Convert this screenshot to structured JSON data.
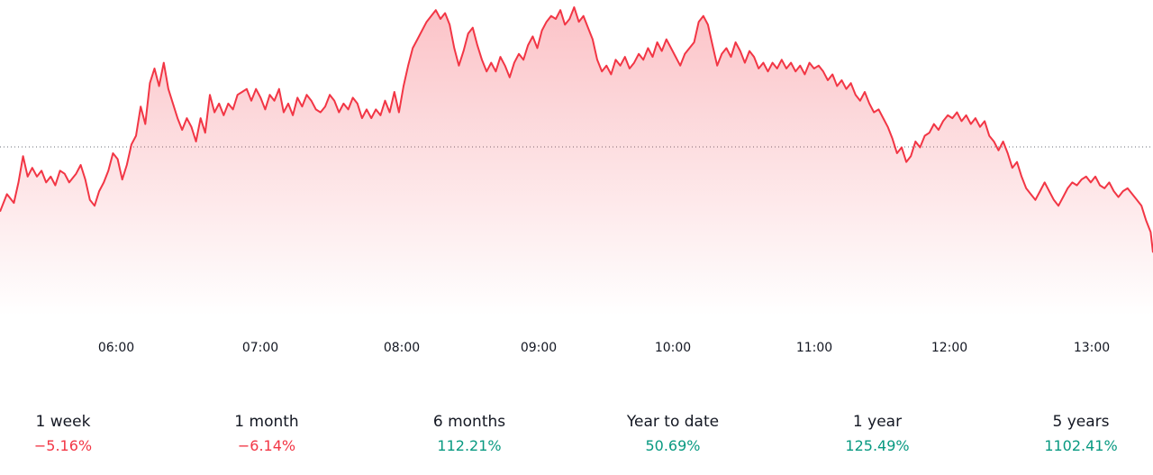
{
  "chart_data": {
    "type": "area",
    "xlabel": "",
    "ylabel": "",
    "x_ticks": [
      "06:00",
      "07:00",
      "08:00",
      "09:00",
      "10:00",
      "11:00",
      "12:00",
      "13:00"
    ],
    "reference_line": "dotted horizontal line (previous close)",
    "grid": false,
    "y_axis_visible": false,
    "line_color": "#f23645",
    "fill_color": "#f23645",
    "series": [
      {
        "points": [
          [
            0,
            0.7
          ],
          [
            0.3,
            0.64
          ],
          [
            0.6,
            0.67
          ],
          [
            0.8,
            0.6
          ],
          [
            1.0,
            0.51
          ],
          [
            1.2,
            0.58
          ],
          [
            1.4,
            0.55
          ],
          [
            1.6,
            0.58
          ],
          [
            1.8,
            0.56
          ],
          [
            2.0,
            0.6
          ],
          [
            2.2,
            0.58
          ],
          [
            2.4,
            0.61
          ],
          [
            2.6,
            0.56
          ],
          [
            2.8,
            0.57
          ],
          [
            3.0,
            0.6
          ],
          [
            3.3,
            0.57
          ],
          [
            3.5,
            0.54
          ],
          [
            3.7,
            0.59
          ],
          [
            3.9,
            0.66
          ],
          [
            4.1,
            0.68
          ],
          [
            4.3,
            0.63
          ],
          [
            4.5,
            0.6
          ],
          [
            4.7,
            0.56
          ],
          [
            4.9,
            0.5
          ],
          [
            5.1,
            0.52
          ],
          [
            5.3,
            0.59
          ],
          [
            5.5,
            0.54
          ],
          [
            5.7,
            0.47
          ],
          [
            5.9,
            0.44
          ],
          [
            6.1,
            0.34
          ],
          [
            6.3,
            0.4
          ],
          [
            6.5,
            0.26
          ],
          [
            6.7,
            0.21
          ],
          [
            6.9,
            0.27
          ],
          [
            7.1,
            0.19
          ],
          [
            7.3,
            0.28
          ],
          [
            7.5,
            0.33
          ],
          [
            7.7,
            0.38
          ],
          [
            7.9,
            0.42
          ],
          [
            8.1,
            0.38
          ],
          [
            8.3,
            0.41
          ],
          [
            8.5,
            0.46
          ],
          [
            8.7,
            0.38
          ],
          [
            8.9,
            0.43
          ],
          [
            9.1,
            0.3
          ],
          [
            9.3,
            0.36
          ],
          [
            9.5,
            0.33
          ],
          [
            9.7,
            0.37
          ],
          [
            9.9,
            0.33
          ],
          [
            10.1,
            0.35
          ],
          [
            10.3,
            0.3
          ],
          [
            10.5,
            0.29
          ],
          [
            10.7,
            0.28
          ],
          [
            10.9,
            0.32
          ],
          [
            11.1,
            0.28
          ],
          [
            11.3,
            0.31
          ],
          [
            11.5,
            0.35
          ],
          [
            11.7,
            0.3
          ],
          [
            11.9,
            0.32
          ],
          [
            12.1,
            0.28
          ],
          [
            12.3,
            0.36
          ],
          [
            12.5,
            0.33
          ],
          [
            12.7,
            0.37
          ],
          [
            12.9,
            0.31
          ],
          [
            13.1,
            0.34
          ],
          [
            13.3,
            0.3
          ],
          [
            13.5,
            0.32
          ],
          [
            13.7,
            0.35
          ],
          [
            13.9,
            0.36
          ],
          [
            14.1,
            0.34
          ],
          [
            14.3,
            0.3
          ],
          [
            14.5,
            0.32
          ],
          [
            14.7,
            0.36
          ],
          [
            14.9,
            0.33
          ],
          [
            15.1,
            0.35
          ],
          [
            15.3,
            0.31
          ],
          [
            15.5,
            0.33
          ],
          [
            15.7,
            0.38
          ],
          [
            15.9,
            0.35
          ],
          [
            16.1,
            0.38
          ],
          [
            16.3,
            0.35
          ],
          [
            16.5,
            0.37
          ],
          [
            16.7,
            0.32
          ],
          [
            16.9,
            0.36
          ],
          [
            17.1,
            0.29
          ],
          [
            17.3,
            0.36
          ],
          [
            17.5,
            0.27
          ],
          [
            17.7,
            0.2
          ],
          [
            17.9,
            0.14
          ],
          [
            18.1,
            0.11
          ],
          [
            18.3,
            0.08
          ],
          [
            18.5,
            0.05
          ],
          [
            18.7,
            0.03
          ],
          [
            18.9,
            0.01
          ],
          [
            19.1,
            0.04
          ],
          [
            19.3,
            0.02
          ],
          [
            19.5,
            0.06
          ],
          [
            19.7,
            0.14
          ],
          [
            19.9,
            0.2
          ],
          [
            20.1,
            0.15
          ],
          [
            20.3,
            0.09
          ],
          [
            20.5,
            0.07
          ],
          [
            20.7,
            0.13
          ],
          [
            20.9,
            0.18
          ],
          [
            21.1,
            0.22
          ],
          [
            21.3,
            0.19
          ],
          [
            21.5,
            0.22
          ],
          [
            21.7,
            0.17
          ],
          [
            21.9,
            0.2
          ],
          [
            22.1,
            0.24
          ],
          [
            22.3,
            0.19
          ],
          [
            22.5,
            0.16
          ],
          [
            22.7,
            0.18
          ],
          [
            22.9,
            0.13
          ],
          [
            23.1,
            0.1
          ],
          [
            23.3,
            0.14
          ],
          [
            23.5,
            0.08
          ],
          [
            23.7,
            0.05
          ],
          [
            23.9,
            0.03
          ],
          [
            24.1,
            0.04
          ],
          [
            24.3,
            0.01
          ],
          [
            24.5,
            0.06
          ],
          [
            24.7,
            0.04
          ],
          [
            24.9,
            0.0
          ],
          [
            25.1,
            0.05
          ],
          [
            25.3,
            0.03
          ],
          [
            25.5,
            0.07
          ],
          [
            25.7,
            0.11
          ],
          [
            25.9,
            0.18
          ],
          [
            26.1,
            0.22
          ],
          [
            26.3,
            0.2
          ],
          [
            26.5,
            0.23
          ],
          [
            26.7,
            0.18
          ],
          [
            26.9,
            0.2
          ],
          [
            27.1,
            0.17
          ],
          [
            27.3,
            0.21
          ],
          [
            27.5,
            0.19
          ],
          [
            27.7,
            0.16
          ],
          [
            27.9,
            0.18
          ],
          [
            28.1,
            0.14
          ],
          [
            28.3,
            0.17
          ],
          [
            28.5,
            0.12
          ],
          [
            28.7,
            0.15
          ],
          [
            28.9,
            0.11
          ],
          [
            29.1,
            0.14
          ],
          [
            29.3,
            0.17
          ],
          [
            29.5,
            0.2
          ],
          [
            29.7,
            0.16
          ],
          [
            29.9,
            0.14
          ],
          [
            30.1,
            0.12
          ],
          [
            30.3,
            0.05
          ],
          [
            30.5,
            0.03
          ],
          [
            30.7,
            0.06
          ],
          [
            30.9,
            0.13
          ],
          [
            31.1,
            0.2
          ],
          [
            31.3,
            0.16
          ],
          [
            31.5,
            0.14
          ],
          [
            31.7,
            0.17
          ],
          [
            31.9,
            0.12
          ],
          [
            32.1,
            0.15
          ],
          [
            32.3,
            0.19
          ],
          [
            32.5,
            0.15
          ],
          [
            32.7,
            0.17
          ],
          [
            32.9,
            0.21
          ],
          [
            33.1,
            0.19
          ],
          [
            33.3,
            0.22
          ],
          [
            33.5,
            0.19
          ],
          [
            33.7,
            0.21
          ],
          [
            33.9,
            0.18
          ],
          [
            34.1,
            0.21
          ],
          [
            34.3,
            0.19
          ],
          [
            34.5,
            0.22
          ],
          [
            34.7,
            0.2
          ],
          [
            34.9,
            0.23
          ],
          [
            35.1,
            0.19
          ],
          [
            35.3,
            0.21
          ],
          [
            35.5,
            0.2
          ],
          [
            35.7,
            0.22
          ],
          [
            35.9,
            0.25
          ],
          [
            36.1,
            0.23
          ],
          [
            36.3,
            0.27
          ],
          [
            36.5,
            0.25
          ],
          [
            36.7,
            0.28
          ],
          [
            36.9,
            0.26
          ],
          [
            37.1,
            0.3
          ],
          [
            37.3,
            0.32
          ],
          [
            37.5,
            0.29
          ],
          [
            37.7,
            0.33
          ],
          [
            37.9,
            0.36
          ],
          [
            38.1,
            0.35
          ],
          [
            38.3,
            0.38
          ],
          [
            38.5,
            0.41
          ],
          [
            38.7,
            0.45
          ],
          [
            38.9,
            0.5
          ],
          [
            39.1,
            0.48
          ],
          [
            39.3,
            0.53
          ],
          [
            39.5,
            0.51
          ],
          [
            39.7,
            0.46
          ],
          [
            39.9,
            0.48
          ],
          [
            40.1,
            0.44
          ],
          [
            40.3,
            0.43
          ],
          [
            40.5,
            0.4
          ],
          [
            40.7,
            0.42
          ],
          [
            40.9,
            0.39
          ],
          [
            41.1,
            0.37
          ],
          [
            41.3,
            0.38
          ],
          [
            41.5,
            0.36
          ],
          [
            41.7,
            0.39
          ],
          [
            41.9,
            0.37
          ],
          [
            42.1,
            0.4
          ],
          [
            42.3,
            0.38
          ],
          [
            42.5,
            0.41
          ],
          [
            42.7,
            0.39
          ],
          [
            42.9,
            0.44
          ],
          [
            43.1,
            0.46
          ],
          [
            43.3,
            0.49
          ],
          [
            43.5,
            0.46
          ],
          [
            43.7,
            0.5
          ],
          [
            43.9,
            0.55
          ],
          [
            44.1,
            0.53
          ],
          [
            44.3,
            0.58
          ],
          [
            44.5,
            0.62
          ],
          [
            44.7,
            0.64
          ],
          [
            44.9,
            0.66
          ],
          [
            45.1,
            0.63
          ],
          [
            45.3,
            0.6
          ],
          [
            45.5,
            0.63
          ],
          [
            45.7,
            0.66
          ],
          [
            45.9,
            0.68
          ],
          [
            46.1,
            0.65
          ],
          [
            46.3,
            0.62
          ],
          [
            46.5,
            0.6
          ],
          [
            46.7,
            0.61
          ],
          [
            46.9,
            0.59
          ],
          [
            47.1,
            0.58
          ],
          [
            47.3,
            0.6
          ],
          [
            47.5,
            0.58
          ],
          [
            47.7,
            0.61
          ],
          [
            47.9,
            0.62
          ],
          [
            48.1,
            0.6
          ],
          [
            48.3,
            0.63
          ],
          [
            48.5,
            0.65
          ],
          [
            48.7,
            0.63
          ],
          [
            48.9,
            0.62
          ],
          [
            49.1,
            0.64
          ],
          [
            49.3,
            0.66
          ],
          [
            49.5,
            0.68
          ],
          [
            49.7,
            0.73
          ],
          [
            49.9,
            0.77
          ],
          [
            50.0,
            0.84
          ]
        ]
      }
    ]
  },
  "stats": [
    {
      "label": "1 week",
      "value": "−5.16%",
      "trend": "negative"
    },
    {
      "label": "1 month",
      "value": "−6.14%",
      "trend": "negative"
    },
    {
      "label": "6 months",
      "value": "112.21%",
      "trend": "positive"
    },
    {
      "label": "Year to date",
      "value": "50.69%",
      "trend": "positive"
    },
    {
      "label": "1 year",
      "value": "125.49%",
      "trend": "positive"
    },
    {
      "label": "5 years",
      "value": "1102.41%",
      "trend": "positive"
    }
  ],
  "colors": {
    "negative": "#f23645",
    "positive": "#089981"
  }
}
